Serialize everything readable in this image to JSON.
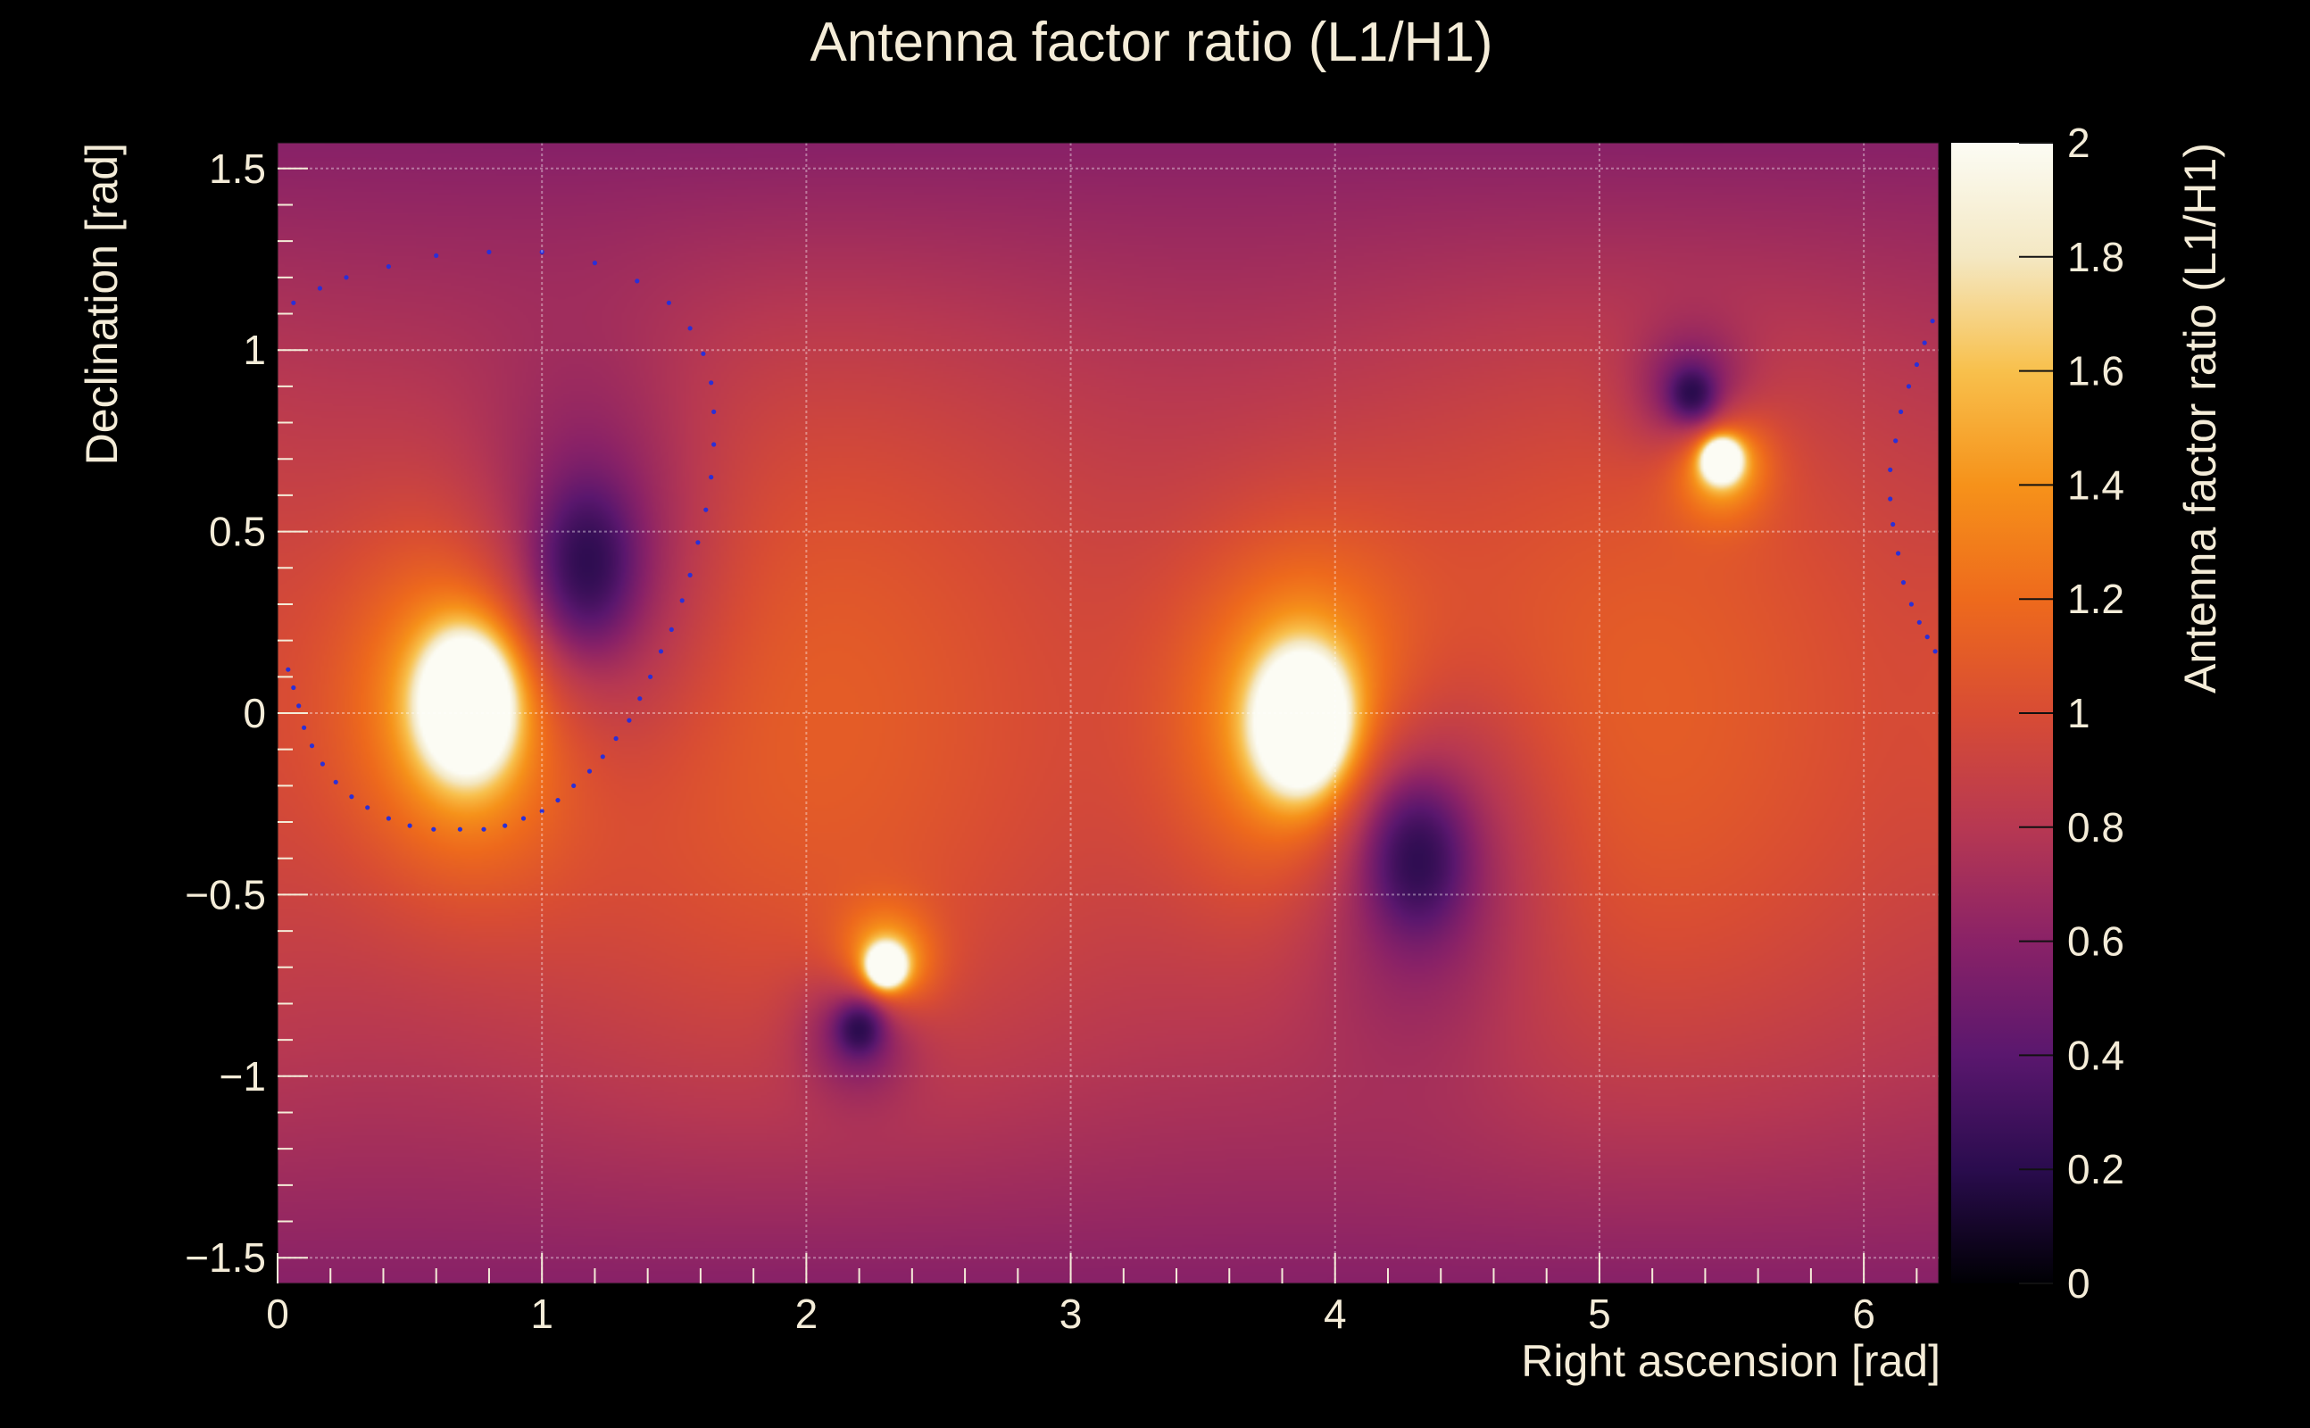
{
  "chart_data": {
    "type": "heatmap",
    "title": "Antenna factor ratio (L1/H1)",
    "xlabel": "Right ascension [rad]",
    "ylabel": "Declination [rad]",
    "zlabel": "Antenna factor ratio (L1/H1)",
    "xlim": [
      0,
      6.2832
    ],
    "ylim": [
      -1.5708,
      1.5708
    ],
    "zlim": [
      0,
      2
    ],
    "x_ticks": [
      {
        "value": 0,
        "label": "0"
      },
      {
        "value": 1,
        "label": "1"
      },
      {
        "value": 2,
        "label": "2"
      },
      {
        "value": 3,
        "label": "3"
      },
      {
        "value": 4,
        "label": "4"
      },
      {
        "value": 5,
        "label": "5"
      },
      {
        "value": 6,
        "label": "6"
      }
    ],
    "y_ticks": [
      {
        "value": -1.5,
        "label": "−1.5"
      },
      {
        "value": -1,
        "label": "−1"
      },
      {
        "value": -0.5,
        "label": "−0.5"
      },
      {
        "value": 0,
        "label": "0"
      },
      {
        "value": 0.5,
        "label": "0.5"
      },
      {
        "value": 1,
        "label": "1"
      },
      {
        "value": 1.5,
        "label": "1.5"
      }
    ],
    "z_ticks": [
      {
        "value": 0,
        "label": "0"
      },
      {
        "value": 0.2,
        "label": "0.2"
      },
      {
        "value": 0.4,
        "label": "0.4"
      },
      {
        "value": 0.6,
        "label": "0.6"
      },
      {
        "value": 0.8,
        "label": "0.8"
      },
      {
        "value": 1,
        "label": "1"
      },
      {
        "value": 1.2,
        "label": "1.2"
      },
      {
        "value": 1.4,
        "label": "1.4"
      },
      {
        "value": 1.6,
        "label": "1.6"
      },
      {
        "value": 1.8,
        "label": "1.8"
      },
      {
        "value": 2,
        "label": "2"
      }
    ],
    "grid": true,
    "colormap": [
      "#000004",
      "#2a0c4e",
      "#5a176e",
      "#8a2267",
      "#b73852",
      "#d84c34",
      "#ee6a1c",
      "#f6921a",
      "#f8c04c",
      "#f4e8c3",
      "#fcfcf4"
    ],
    "features": [
      {
        "kind": "maximum",
        "ra": 0.72,
        "dec": 0.03,
        "ra_width": 0.28,
        "dec_width": 0.3
      },
      {
        "kind": "minimum",
        "ra": 1.17,
        "dec": 0.41,
        "ra_width": 0.25,
        "dec_width": 0.3
      },
      {
        "kind": "maximum",
        "ra": 3.88,
        "dec": -0.03,
        "ra_width": 0.28,
        "dec_width": 0.3
      },
      {
        "kind": "minimum",
        "ra": 4.31,
        "dec": -0.4,
        "ra_width": 0.25,
        "dec_width": 0.28
      },
      {
        "kind": "maximum",
        "ra": 2.3,
        "dec": -0.7,
        "ra_width": 0.11,
        "dec_width": 0.09
      },
      {
        "kind": "minimum",
        "ra": 2.2,
        "dec": -0.87,
        "ra_width": 0.12,
        "dec_width": 0.1
      },
      {
        "kind": "maximum",
        "ra": 5.46,
        "dec": 0.7,
        "ra_width": 0.11,
        "dec_width": 0.09
      },
      {
        "kind": "minimum",
        "ra": 5.35,
        "dec": 0.88,
        "ra_width": 0.12,
        "dec_width": 0.1
      }
    ],
    "overlay": {
      "kind": "dotted-contour",
      "color": "#2b2fd6",
      "points": [
        [
          0.04,
          0.12
        ],
        [
          0.06,
          0.07
        ],
        [
          0.08,
          0.02
        ],
        [
          0.1,
          -0.04
        ],
        [
          0.13,
          -0.09
        ],
        [
          0.17,
          -0.14
        ],
        [
          0.22,
          -0.19
        ],
        [
          0.28,
          -0.23
        ],
        [
          0.34,
          -0.26
        ],
        [
          0.42,
          -0.29
        ],
        [
          0.5,
          -0.31
        ],
        [
          0.59,
          -0.32
        ],
        [
          0.69,
          -0.32
        ],
        [
          0.78,
          -0.32
        ],
        [
          0.86,
          -0.31
        ],
        [
          0.93,
          -0.29
        ],
        [
          1.0,
          -0.27
        ],
        [
          1.06,
          -0.24
        ],
        [
          1.12,
          -0.2
        ],
        [
          1.18,
          -0.16
        ],
        [
          1.23,
          -0.12
        ],
        [
          1.28,
          -0.07
        ],
        [
          1.33,
          -0.02
        ],
        [
          1.37,
          0.04
        ],
        [
          1.41,
          0.1
        ],
        [
          1.45,
          0.17
        ],
        [
          1.49,
          0.23
        ],
        [
          1.53,
          0.31
        ],
        [
          1.56,
          0.38
        ],
        [
          1.59,
          0.47
        ],
        [
          1.62,
          0.56
        ],
        [
          1.64,
          0.65
        ],
        [
          1.65,
          0.74
        ],
        [
          1.65,
          0.83
        ],
        [
          1.64,
          0.91
        ],
        [
          1.61,
          0.99
        ],
        [
          1.56,
          1.06
        ],
        [
          1.48,
          1.13
        ],
        [
          1.36,
          1.19
        ],
        [
          1.2,
          1.24
        ],
        [
          1.0,
          1.27
        ],
        [
          0.8,
          1.27
        ],
        [
          0.6,
          1.26
        ],
        [
          0.42,
          1.23
        ],
        [
          0.26,
          1.2
        ],
        [
          0.16,
          1.17
        ],
        [
          0.06,
          1.13
        ],
        [
          6.26,
          1.08
        ],
        [
          6.23,
          1.02
        ],
        [
          6.2,
          0.96
        ],
        [
          6.17,
          0.9
        ],
        [
          6.14,
          0.83
        ],
        [
          6.12,
          0.75
        ],
        [
          6.1,
          0.67
        ],
        [
          6.1,
          0.59
        ],
        [
          6.11,
          0.52
        ],
        [
          6.13,
          0.44
        ],
        [
          6.15,
          0.36
        ],
        [
          6.18,
          0.3
        ],
        [
          6.21,
          0.25
        ],
        [
          6.24,
          0.21
        ],
        [
          6.27,
          0.17
        ]
      ]
    }
  }
}
